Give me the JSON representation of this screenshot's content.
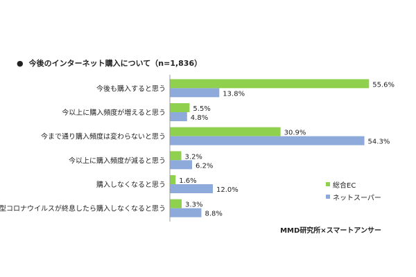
{
  "title": "今後のインターネット購入について（n=1,836）",
  "bullet": "●",
  "source": "MMD研究所×スマートアンサー",
  "colors": {
    "ec": "#8fd14f",
    "supermarket": "#8eaadb",
    "axis": "#999999"
  },
  "chart_data": {
    "type": "bar",
    "orientation": "horizontal",
    "title": "今後のインターネット購入について（n=1,836）",
    "categories": [
      "今後も購入すると思う",
      "今以上に購入頻度が増えると思う",
      "今まで通り購入頻度は変わらないと思う",
      "今以上に購入頻度が減ると思う",
      "購入しなくなると思う",
      "新型コロナウイルスが終息したら購入しなくなると思う"
    ],
    "series": [
      {
        "name": "総合EC",
        "values": [
          55.6,
          5.5,
          30.9,
          3.2,
          1.6,
          3.3
        ],
        "labels": [
          "55.6%",
          "5.5%",
          "30.9%",
          "3.2%",
          "1.6%",
          "3.3%"
        ]
      },
      {
        "name": "ネットスーパー",
        "values": [
          13.8,
          4.8,
          54.3,
          6.2,
          12.0,
          8.8
        ],
        "labels": [
          "13.8%",
          "4.8%",
          "54.3%",
          "6.2%",
          "12.0%",
          "8.8%"
        ]
      }
    ],
    "unit": "%",
    "xlim": [
      0,
      60
    ],
    "grid": false,
    "legend_position": "right"
  }
}
